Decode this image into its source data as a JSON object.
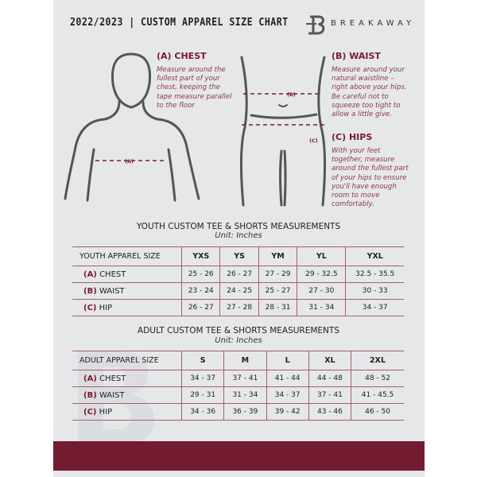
{
  "header": {
    "title": "2022/2023  |  CUSTOM APPAREL SIZE CHART",
    "brand": "BREAKAWAY",
    "logo_letter": "B"
  },
  "colors": {
    "accent": "#7a1a30",
    "footer": "#731b31",
    "panel": "#e6e7e9"
  },
  "measure": {
    "chest": {
      "heading": "(A) CHEST",
      "text": "Measure around the fullest part of your chest, keeping the tape measure parallel to the floor",
      "marker": "(A)"
    },
    "waist": {
      "heading": "(B) WAIST",
      "text": "Measure around your natural waistline – right above your hips. Be careful not to squeeze too tight to allow a little give.",
      "marker": "(B)"
    },
    "hips": {
      "heading": "(C) HIPS",
      "text": "With your feet together, measure around the fullest part of your hips to ensure you'll have enough room to move comfortably.",
      "marker": "(C)"
    }
  },
  "youth": {
    "title": "YOUTH CUSTOM TEE & SHORTS MEASUREMENTS",
    "unit": "Unit: Inches",
    "header": [
      "YOUTH APPAREL SIZE",
      "YXS",
      "YS",
      "YM",
      "YL",
      "YXL"
    ],
    "rows": [
      {
        "code": "(A)",
        "label": "CHEST",
        "values": [
          "25 - 26",
          "26 - 27",
          "27 - 29",
          "29 - 32.5",
          "32.5 - 35.5"
        ]
      },
      {
        "code": "(B)",
        "label": "WAIST",
        "values": [
          "23 - 24",
          "24 - 25",
          "25 - 27",
          "27 - 30",
          "30 - 33"
        ]
      },
      {
        "code": "(C)",
        "label": "HIP",
        "values": [
          "26 - 27",
          "27 - 28",
          "28 - 31",
          "31 - 34",
          "34 - 37"
        ]
      }
    ]
  },
  "adult": {
    "title": "ADULT CUSTOM TEE & SHORTS MEASUREMENTS",
    "unit": "Unit: Inches",
    "header": [
      "ADULT APPAREL SIZE",
      "S",
      "M",
      "L",
      "XL",
      "2XL"
    ],
    "rows": [
      {
        "code": "(A)",
        "label": "CHEST",
        "values": [
          "34 - 37",
          "37 - 41",
          "41 - 44",
          "44 - 48",
          "48 - 52"
        ]
      },
      {
        "code": "(B)",
        "label": "WAIST",
        "values": [
          "29 - 31",
          "31 - 34",
          "34 - 37",
          "37 - 41",
          "41 - 45.5"
        ]
      },
      {
        "code": "(C)",
        "label": "HIP",
        "values": [
          "34 - 36",
          "36 - 39",
          "39 - 42",
          "43 - 46",
          "46 - 50"
        ]
      }
    ]
  }
}
